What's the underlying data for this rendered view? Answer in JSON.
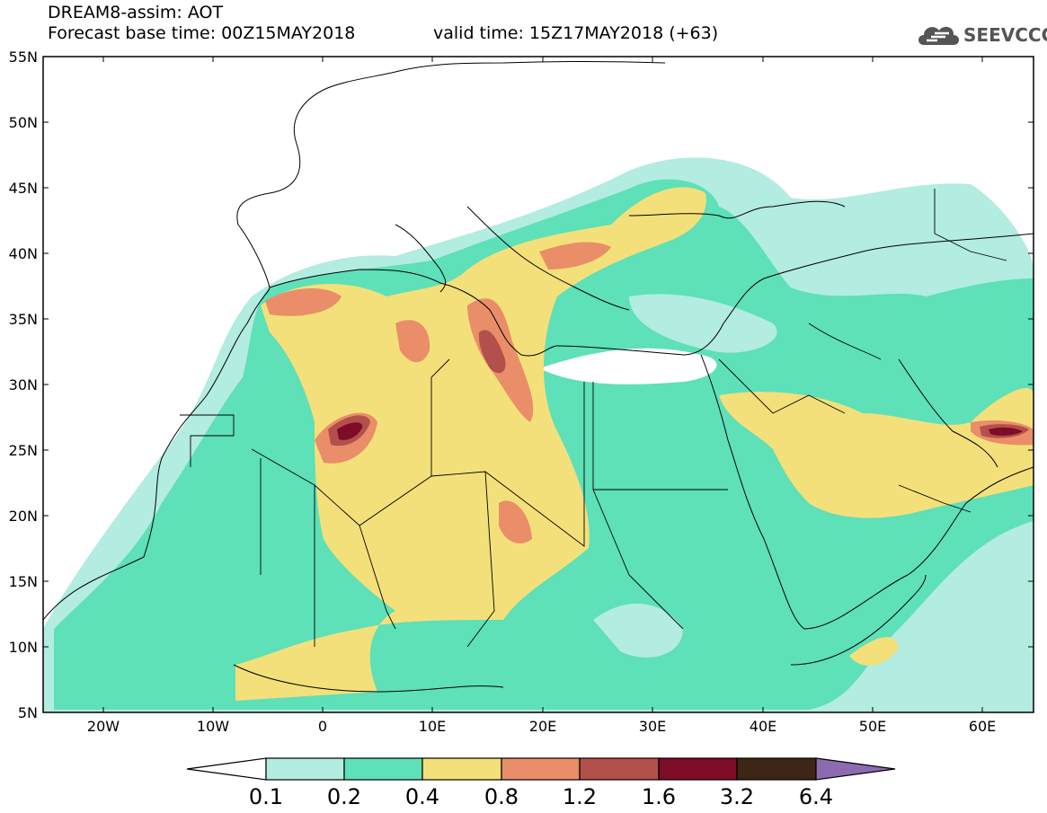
{
  "header": {
    "line1": "DREAM8-assim: AOT",
    "line2": "Forecast base time: 00Z15MAY2018",
    "valid": "valid time: 15Z17MAY2018 (+63)",
    "logo_text": "SEEVCCC"
  },
  "map": {
    "lat_labels": [
      "55N",
      "50N",
      "45N",
      "40N",
      "35N",
      "30N",
      "25N",
      "20N",
      "15N",
      "10N",
      "5N"
    ],
    "lon_labels": [
      "20W",
      "10W",
      "0",
      "10E",
      "20E",
      "30E",
      "40E",
      "50E",
      "60E"
    ],
    "lat_range": [
      5,
      55
    ],
    "lon_range": [
      -25,
      65
    ],
    "field": "Aerosol optical thickness (dust)"
  },
  "colorbar": {
    "levels": [
      "0.1",
      "0.2",
      "0.4",
      "0.8",
      "1.2",
      "1.6",
      "3.2",
      "6.4"
    ],
    "colors": [
      "#b3ece0",
      "#5ee0b8",
      "#f4e07a",
      "#e98e68",
      "#b2504c",
      "#7d0c28",
      "#3d2615",
      "#8e6ab0"
    ]
  }
}
